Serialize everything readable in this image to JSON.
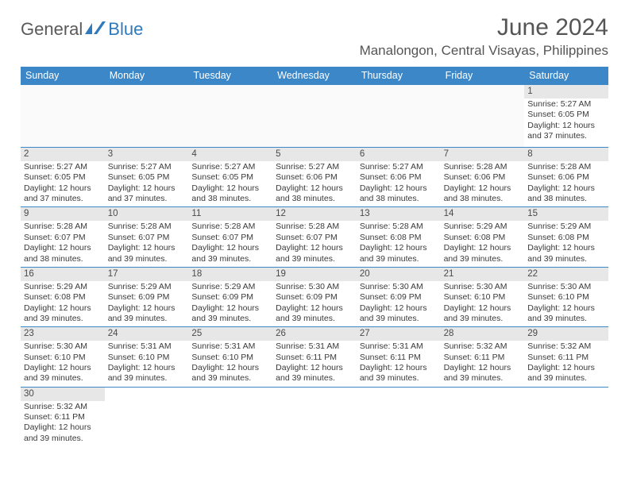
{
  "logo": {
    "part1": "General",
    "part2": "Blue"
  },
  "title": "June 2024",
  "location": "Manalongon, Central Visayas, Philippines",
  "colors": {
    "header_bg": "#3b87c8",
    "header_text": "#ffffff",
    "daynum_bg": "#e7e7e7",
    "row_border": "#3b87c8",
    "logo_gray": "#5a5a5a",
    "logo_blue": "#2f79bd",
    "text": "#3a3a3a"
  },
  "weekdays": [
    "Sunday",
    "Monday",
    "Tuesday",
    "Wednesday",
    "Thursday",
    "Friday",
    "Saturday"
  ],
  "leading_blanks": 6,
  "days": [
    {
      "n": 1,
      "sr": "5:27 AM",
      "ss": "6:05 PM",
      "dl": "12 hours and 37 minutes."
    },
    {
      "n": 2,
      "sr": "5:27 AM",
      "ss": "6:05 PM",
      "dl": "12 hours and 37 minutes."
    },
    {
      "n": 3,
      "sr": "5:27 AM",
      "ss": "6:05 PM",
      "dl": "12 hours and 37 minutes."
    },
    {
      "n": 4,
      "sr": "5:27 AM",
      "ss": "6:05 PM",
      "dl": "12 hours and 38 minutes."
    },
    {
      "n": 5,
      "sr": "5:27 AM",
      "ss": "6:06 PM",
      "dl": "12 hours and 38 minutes."
    },
    {
      "n": 6,
      "sr": "5:27 AM",
      "ss": "6:06 PM",
      "dl": "12 hours and 38 minutes."
    },
    {
      "n": 7,
      "sr": "5:28 AM",
      "ss": "6:06 PM",
      "dl": "12 hours and 38 minutes."
    },
    {
      "n": 8,
      "sr": "5:28 AM",
      "ss": "6:06 PM",
      "dl": "12 hours and 38 minutes."
    },
    {
      "n": 9,
      "sr": "5:28 AM",
      "ss": "6:07 PM",
      "dl": "12 hours and 38 minutes."
    },
    {
      "n": 10,
      "sr": "5:28 AM",
      "ss": "6:07 PM",
      "dl": "12 hours and 39 minutes."
    },
    {
      "n": 11,
      "sr": "5:28 AM",
      "ss": "6:07 PM",
      "dl": "12 hours and 39 minutes."
    },
    {
      "n": 12,
      "sr": "5:28 AM",
      "ss": "6:07 PM",
      "dl": "12 hours and 39 minutes."
    },
    {
      "n": 13,
      "sr": "5:28 AM",
      "ss": "6:08 PM",
      "dl": "12 hours and 39 minutes."
    },
    {
      "n": 14,
      "sr": "5:29 AM",
      "ss": "6:08 PM",
      "dl": "12 hours and 39 minutes."
    },
    {
      "n": 15,
      "sr": "5:29 AM",
      "ss": "6:08 PM",
      "dl": "12 hours and 39 minutes."
    },
    {
      "n": 16,
      "sr": "5:29 AM",
      "ss": "6:08 PM",
      "dl": "12 hours and 39 minutes."
    },
    {
      "n": 17,
      "sr": "5:29 AM",
      "ss": "6:09 PM",
      "dl": "12 hours and 39 minutes."
    },
    {
      "n": 18,
      "sr": "5:29 AM",
      "ss": "6:09 PM",
      "dl": "12 hours and 39 minutes."
    },
    {
      "n": 19,
      "sr": "5:30 AM",
      "ss": "6:09 PM",
      "dl": "12 hours and 39 minutes."
    },
    {
      "n": 20,
      "sr": "5:30 AM",
      "ss": "6:09 PM",
      "dl": "12 hours and 39 minutes."
    },
    {
      "n": 21,
      "sr": "5:30 AM",
      "ss": "6:10 PM",
      "dl": "12 hours and 39 minutes."
    },
    {
      "n": 22,
      "sr": "5:30 AM",
      "ss": "6:10 PM",
      "dl": "12 hours and 39 minutes."
    },
    {
      "n": 23,
      "sr": "5:30 AM",
      "ss": "6:10 PM",
      "dl": "12 hours and 39 minutes."
    },
    {
      "n": 24,
      "sr": "5:31 AM",
      "ss": "6:10 PM",
      "dl": "12 hours and 39 minutes."
    },
    {
      "n": 25,
      "sr": "5:31 AM",
      "ss": "6:10 PM",
      "dl": "12 hours and 39 minutes."
    },
    {
      "n": 26,
      "sr": "5:31 AM",
      "ss": "6:11 PM",
      "dl": "12 hours and 39 minutes."
    },
    {
      "n": 27,
      "sr": "5:31 AM",
      "ss": "6:11 PM",
      "dl": "12 hours and 39 minutes."
    },
    {
      "n": 28,
      "sr": "5:32 AM",
      "ss": "6:11 PM",
      "dl": "12 hours and 39 minutes."
    },
    {
      "n": 29,
      "sr": "5:32 AM",
      "ss": "6:11 PM",
      "dl": "12 hours and 39 minutes."
    },
    {
      "n": 30,
      "sr": "5:32 AM",
      "ss": "6:11 PM",
      "dl": "12 hours and 39 minutes."
    }
  ],
  "labels": {
    "sunrise": "Sunrise:",
    "sunset": "Sunset:",
    "daylight": "Daylight:"
  }
}
